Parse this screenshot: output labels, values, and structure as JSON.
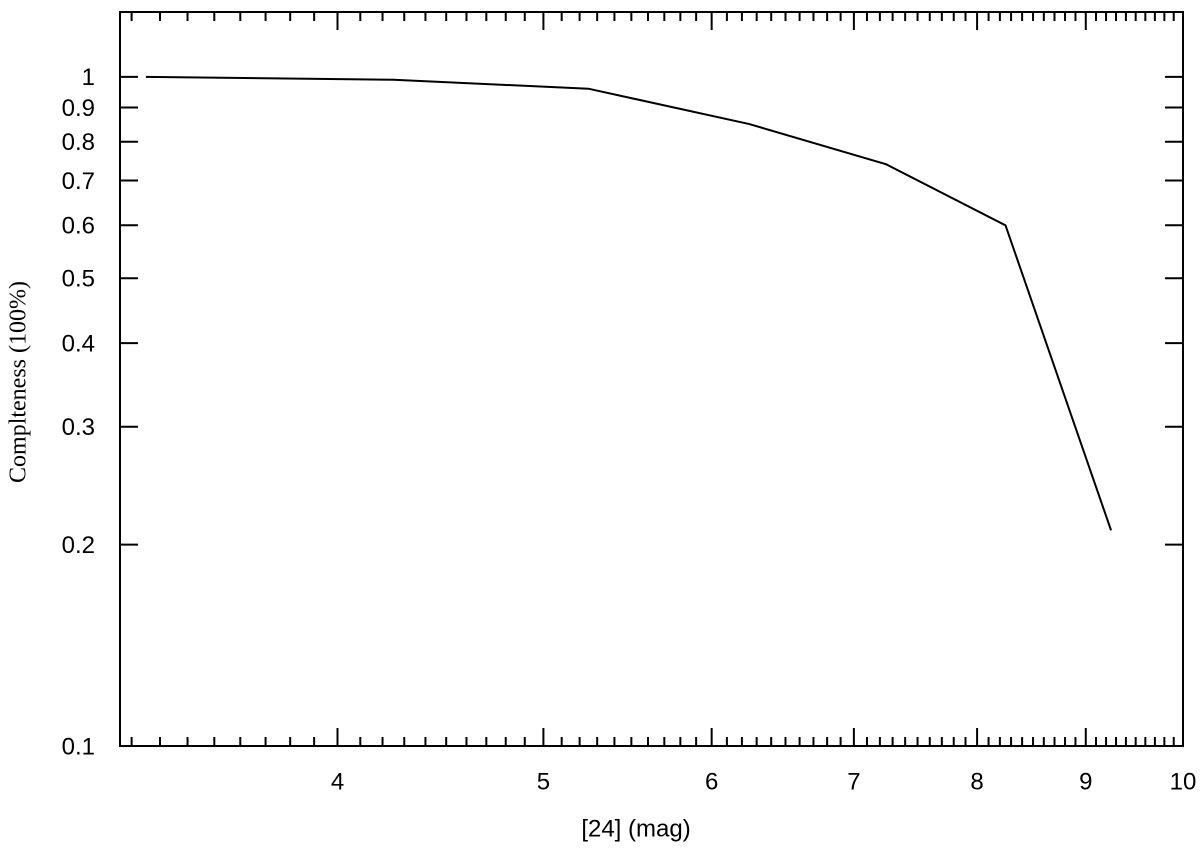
{
  "chart_data": {
    "type": "line",
    "xlabel": "[24] (mag)",
    "ylabel": "Complteness (100%)",
    "x": [
      3.25,
      4.25,
      5.25,
      6.25,
      7.25,
      8.25,
      9.25
    ],
    "series": [
      {
        "color": "#000000",
        "values": [
          1.0,
          0.99,
          0.96,
          0.85,
          0.74,
          0.6,
          0.21
        ]
      }
    ],
    "xscale": "log",
    "yscale": "log",
    "xlim": [
      3.16,
      10
    ],
    "ylim": [
      0.1,
      1.25
    ],
    "xticks": [
      4,
      5,
      6,
      7,
      8,
      9,
      10
    ],
    "xminorticks": [
      3.2,
      3.3,
      3.4,
      3.5,
      3.6,
      3.7,
      3.8,
      3.9,
      4.1,
      4.2,
      4.3,
      4.4,
      4.5,
      4.6,
      4.7,
      4.8,
      4.9,
      5.1,
      5.2,
      5.3,
      5.4,
      5.5,
      5.6,
      5.7,
      5.8,
      5.9,
      6.1,
      6.2,
      6.3,
      6.4,
      6.5,
      6.6,
      6.7,
      6.8,
      6.9,
      7.1,
      7.2,
      7.3,
      7.4,
      7.5,
      7.6,
      7.7,
      7.8,
      7.9,
      8.1,
      8.2,
      8.3,
      8.4,
      8.5,
      8.6,
      8.7,
      8.8,
      8.9,
      9.1,
      9.2,
      9.3,
      9.4,
      9.5,
      9.6,
      9.7,
      9.8,
      9.9
    ],
    "yticks": [
      0.1,
      0.2,
      0.3,
      0.4,
      0.5,
      0.6,
      0.7,
      0.8,
      0.9,
      1
    ]
  }
}
